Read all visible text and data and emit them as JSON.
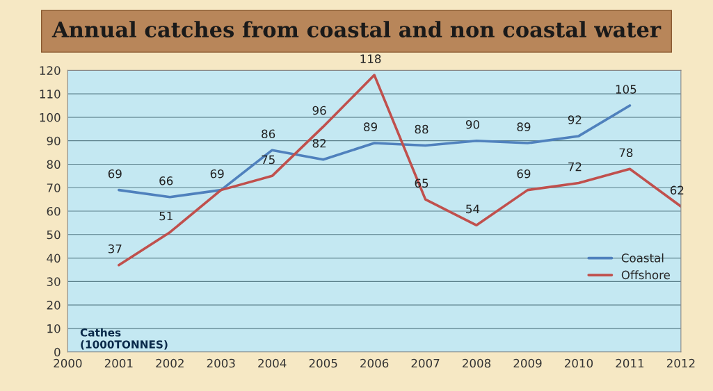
{
  "chart_data": {
    "type": "line",
    "title": "Annual catches from coastal and non coastal water",
    "x": [
      2001,
      2002,
      2003,
      2004,
      2005,
      2006,
      2007,
      2008,
      2009,
      2010,
      2011,
      2012
    ],
    "series": [
      {
        "name": "Coastal",
        "color": "#4f81bd",
        "values": [
          69,
          66,
          69,
          86,
          82,
          89,
          88,
          90,
          89,
          92,
          105,
          null
        ],
        "value_labels": [
          "69",
          "66",
          "69",
          "86",
          "82",
          "89",
          "88",
          "90",
          "89",
          "92",
          "105",
          null
        ]
      },
      {
        "name": "Offshore",
        "color": "#c0504d",
        "values": [
          37,
          51,
          69,
          75,
          96,
          118,
          65,
          54,
          69,
          72,
          78,
          62
        ],
        "value_labels": [
          "37",
          "51",
          null,
          "75",
          "96",
          "118",
          "65",
          "54",
          "69",
          "72",
          "78",
          "62"
        ]
      }
    ],
    "xlim": [
      2000,
      2012
    ],
    "xticks": [
      2000,
      2001,
      2002,
      2003,
      2004,
      2005,
      2006,
      2007,
      2008,
      2009,
      2010,
      2011,
      2012
    ],
    "ylim": [
      0,
      120
    ],
    "yticks": [
      0,
      10,
      20,
      30,
      40,
      50,
      60,
      70,
      80,
      90,
      100,
      110,
      120
    ],
    "grid": "y",
    "legend": "right",
    "marker": "none",
    "line_style": "solid",
    "annotations": [
      "Cathes\n(1000TONNES)"
    ]
  }
}
